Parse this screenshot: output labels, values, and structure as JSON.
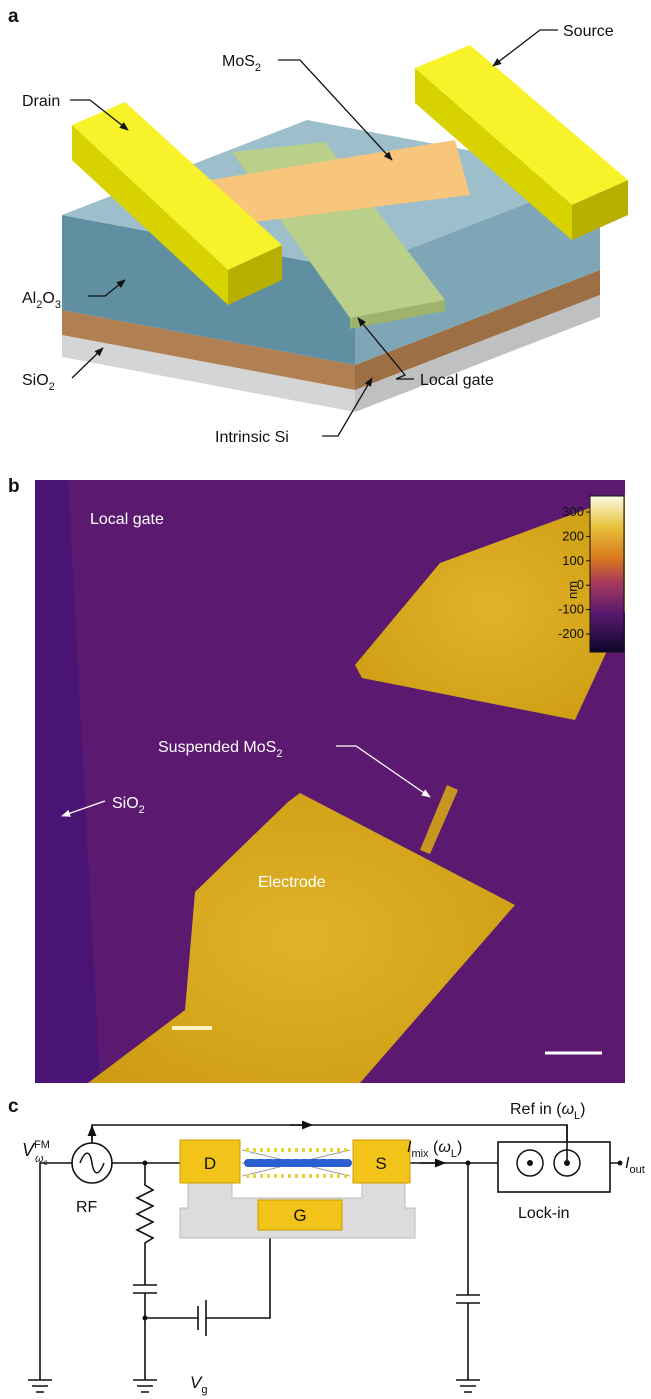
{
  "panel_a": {
    "label": "a",
    "source": "Source",
    "mos2": [
      "MoS",
      "2"
    ],
    "drain": "Drain",
    "al2o3": [
      "Al",
      "2",
      "O",
      "3"
    ],
    "sio2": [
      "SiO",
      "2"
    ],
    "local_gate": "Local gate",
    "intrinsic_si": "Intrinsic Si"
  },
  "panel_b": {
    "label": "b",
    "local_gate": "Local gate",
    "suspended_mos2": [
      "Suspended MoS",
      "2"
    ],
    "sio2": [
      "SiO",
      "2"
    ],
    "electrode": "Electrode",
    "colorbar": {
      "unit": "nm",
      "ticks": [
        "300",
        "200",
        "100",
        "0",
        "-100",
        "-200"
      ]
    }
  },
  "panel_c": {
    "label": "c",
    "ref_in": [
      "Ref in (",
      "ω",
      "L",
      ")"
    ],
    "source_voltage": [
      "V",
      "FM",
      "ω",
      "c"
    ],
    "rf": "RF",
    "drain": "D",
    "source": "S",
    "gate": "G",
    "mixing_current": [
      "I",
      "mix",
      " (",
      "ω",
      "L",
      ")"
    ],
    "lock_in": "Lock-in",
    "output_current": [
      "I",
      "out"
    ],
    "gate_voltage": [
      "V",
      "g"
    ]
  }
}
